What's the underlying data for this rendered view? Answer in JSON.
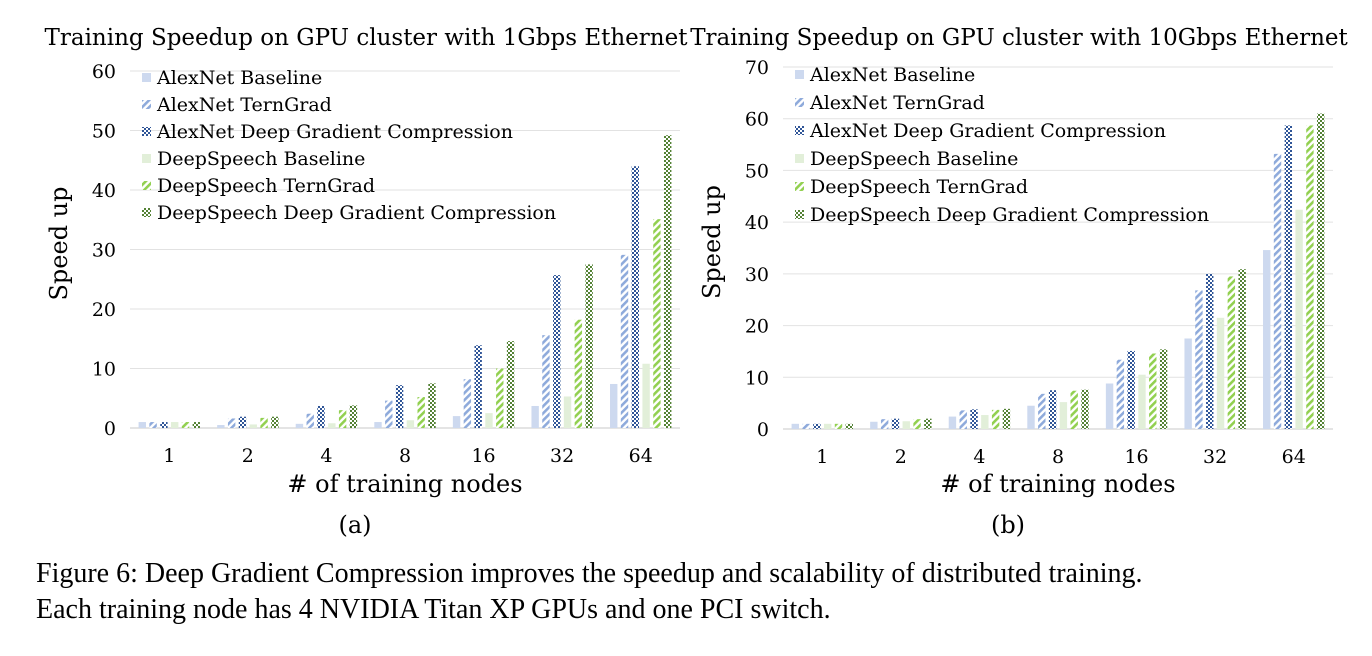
{
  "figure": {
    "caption_line1": "Figure 6: Deep Gradient Compression improves the speedup and scalability of distributed training.",
    "caption_line2": "Each training node has 4 NVIDIA Titan XP GPUs and one PCI switch."
  },
  "series_styles": [
    {
      "name": "AlexNet Baseline",
      "color": "#cdd9ef",
      "pattern": "solid"
    },
    {
      "name": "AlexNet TernGrad",
      "color": "#8eaadb",
      "pattern": "diagonal"
    },
    {
      "name": "AlexNet Deep Gradient Compression",
      "color": "#2f5597",
      "pattern": "checker"
    },
    {
      "name": "DeepSpeech Baseline",
      "color": "#e2efd9",
      "pattern": "solid"
    },
    {
      "name": "DeepSpeech TernGrad",
      "color": "#92d050",
      "pattern": "diagonal"
    },
    {
      "name": "DeepSpeech Deep Gradient Compression",
      "color": "#548235",
      "pattern": "checker"
    }
  ],
  "chart_data": [
    {
      "type": "bar",
      "panel_label": "(a)",
      "title": "Training Speedup on GPU cluster with 1Gbps Ethernet",
      "xlabel": "# of training nodes",
      "ylabel": "Speed up",
      "ylim": [
        0,
        60
      ],
      "yticks": [
        0,
        10,
        20,
        30,
        40,
        50,
        60
      ],
      "grid": true,
      "legend_position": "top-left",
      "categories": [
        "1",
        "2",
        "4",
        "8",
        "16",
        "32",
        "64"
      ],
      "series": [
        {
          "name": "AlexNet Baseline",
          "values": [
            1,
            0.5,
            0.7,
            1,
            2,
            3.7,
            7.4
          ]
        },
        {
          "name": "AlexNet TernGrad",
          "values": [
            1,
            1.6,
            2.4,
            4.6,
            8.2,
            15.6,
            29.1
          ]
        },
        {
          "name": "AlexNet Deep Gradient Compression",
          "values": [
            1,
            1.9,
            3.7,
            7.2,
            13.9,
            25.7,
            44
          ]
        },
        {
          "name": "DeepSpeech Baseline",
          "values": [
            1,
            0.6,
            0.8,
            1.3,
            2.5,
            5.3,
            10.8
          ]
        },
        {
          "name": "DeepSpeech TernGrad",
          "values": [
            1,
            1.7,
            3,
            5.2,
            10,
            18.2,
            35.1
          ]
        },
        {
          "name": "DeepSpeech Deep Gradient Compression",
          "values": [
            1,
            1.9,
            3.8,
            7.5,
            14.6,
            27.5,
            49.2
          ]
        }
      ]
    },
    {
      "type": "bar",
      "panel_label": "(b)",
      "title": "Training Speedup on GPU cluster with 10Gbps Ethernet",
      "xlabel": "# of training nodes",
      "ylabel": "Speed up",
      "ylim": [
        0,
        70
      ],
      "yticks": [
        0,
        10,
        20,
        30,
        40,
        50,
        60,
        70
      ],
      "grid": true,
      "legend_position": "top-left",
      "categories": [
        "1",
        "2",
        "4",
        "8",
        "16",
        "32",
        "64"
      ],
      "series": [
        {
          "name": "AlexNet Baseline",
          "values": [
            1,
            1.4,
            2.4,
            4.5,
            8.8,
            17.5,
            34.6
          ]
        },
        {
          "name": "AlexNet TernGrad",
          "values": [
            1,
            1.9,
            3.6,
            6.8,
            13.4,
            26.8,
            53.2
          ]
        },
        {
          "name": "AlexNet Deep Gradient Compression",
          "values": [
            1,
            2,
            3.8,
            7.5,
            15.1,
            30,
            58.7
          ]
        },
        {
          "name": "DeepSpeech Baseline",
          "values": [
            1,
            1.5,
            2.7,
            5.2,
            10.5,
            21.5,
            42.4
          ]
        },
        {
          "name": "DeepSpeech TernGrad",
          "values": [
            1,
            1.9,
            3.7,
            7.4,
            14.6,
            29.5,
            58.7
          ]
        },
        {
          "name": "DeepSpeech Deep Gradient Compression",
          "values": [
            1,
            2,
            3.9,
            7.6,
            15.4,
            30.9,
            61
          ]
        }
      ]
    }
  ]
}
